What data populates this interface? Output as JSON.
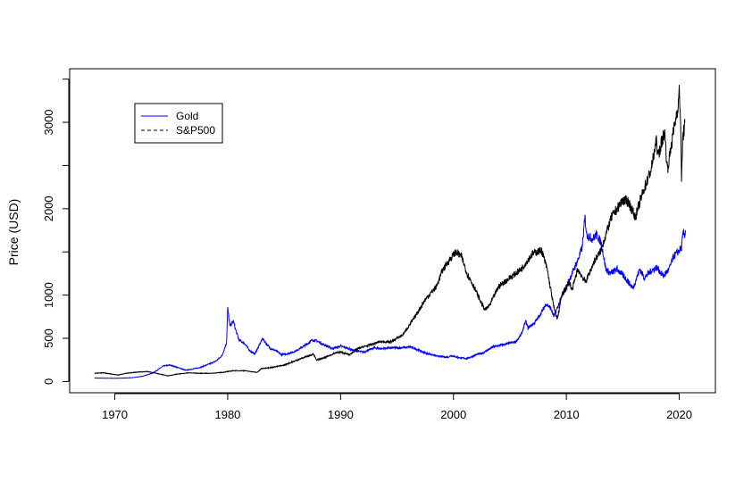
{
  "chart_data": {
    "type": "line",
    "title": "",
    "xlabel": "",
    "ylabel": "Price (USD)",
    "xlim": [
      1966,
      2023.2
    ],
    "ylim": [
      -130,
      3620
    ],
    "x_ticks": [
      1970,
      1980,
      1990,
      2000,
      2010,
      2020
    ],
    "x_tick_labels": [
      "1970",
      "1980",
      "1990",
      "2000",
      "2010",
      "2020"
    ],
    "y_ticks": [
      0,
      500,
      1000,
      2000,
      3000
    ],
    "y_tick_labels": [
      "0",
      "500",
      "1000",
      "2000",
      "3000"
    ],
    "y_minor_ticks": [
      1500,
      2500,
      3500
    ],
    "grid": false,
    "legend_position": "top-left",
    "series": [
      {
        "name": "Gold",
        "color": "#0000ff",
        "dash": "solid",
        "x": [
          1968.2,
          1970.0,
          1971.5,
          1972.5,
          1973.3,
          1973.8,
          1974.3,
          1974.9,
          1975.5,
          1976.3,
          1976.9,
          1977.5,
          1978.0,
          1978.5,
          1979.0,
          1979.5,
          1979.9,
          1980.0,
          1980.2,
          1980.5,
          1980.7,
          1981.0,
          1981.5,
          1982.0,
          1982.4,
          1982.8,
          1983.1,
          1983.4,
          1983.8,
          1984.2,
          1984.8,
          1985.2,
          1985.8,
          1986.5,
          1987.0,
          1987.5,
          1987.9,
          1988.3,
          1988.8,
          1989.3,
          1990.0,
          1990.5,
          1991.2,
          1992.0,
          1993.0,
          1993.6,
          1994.5,
          1995.5,
          1996.2,
          1996.8,
          1997.5,
          1998.5,
          1999.5,
          1999.8,
          2000.5,
          2001.2,
          2002.0,
          2002.6,
          2003.5,
          2004.5,
          2005.5,
          2006.0,
          2006.4,
          2006.6,
          2007.2,
          2007.8,
          2008.2,
          2008.6,
          2008.9,
          2009.5,
          2010.0,
          2010.5,
          2011.0,
          2011.4,
          2011.65,
          2011.8,
          2012.3,
          2012.7,
          2013.1,
          2013.5,
          2013.9,
          2014.5,
          2015.2,
          2015.9,
          2016.5,
          2016.9,
          2017.5,
          2018.0,
          2018.6,
          2019.1,
          2019.5,
          2019.9,
          2020.2,
          2020.35,
          2020.5,
          2020.55
        ],
        "y": [
          40,
          37,
          43,
          62,
          95,
          135,
          180,
          190,
          165,
          130,
          145,
          160,
          185,
          210,
          240,
          300,
          450,
          850,
          640,
          700,
          600,
          480,
          440,
          350,
          320,
          420,
          500,
          440,
          380,
          360,
          310,
          320,
          340,
          390,
          430,
          480,
          470,
          440,
          410,
          380,
          410,
          390,
          360,
          340,
          390,
          380,
          390,
          390,
          400,
          370,
          330,
          295,
          280,
          300,
          275,
          265,
          310,
          330,
          400,
          430,
          460,
          540,
          700,
          620,
          680,
          800,
          900,
          850,
          750,
          950,
          1100,
          1250,
          1400,
          1550,
          1900,
          1700,
          1650,
          1700,
          1600,
          1300,
          1250,
          1300,
          1200,
          1080,
          1300,
          1200,
          1280,
          1320,
          1220,
          1300,
          1450,
          1500,
          1550,
          1720,
          1700,
          1750
        ]
      },
      {
        "name": "S&P500",
        "color": "#000000",
        "dash": "solid",
        "x": [
          1968.2,
          1969.0,
          1970.3,
          1971.0,
          1972.0,
          1972.9,
          1973.5,
          1974.7,
          1975.5,
          1976.5,
          1977.5,
          1978.5,
          1979.5,
          1980.5,
          1981.5,
          1982.6,
          1983.0,
          1984.0,
          1985.0,
          1986.0,
          1987.6,
          1987.85,
          1988.5,
          1989.5,
          1990.0,
          1990.8,
          1991.5,
          1992.5,
          1993.5,
          1994.5,
          1995.5,
          1996.5,
          1997.5,
          1998.5,
          1999.0,
          1999.6,
          2000.2,
          2000.7,
          2001.2,
          2001.8,
          2002.5,
          2002.8,
          2003.2,
          2004.0,
          2005.0,
          2006.0,
          2007.0,
          2007.8,
          2008.3,
          2008.9,
          2009.2,
          2009.6,
          2010.3,
          2010.5,
          2011.0,
          2011.7,
          2012.5,
          2013.0,
          2014.0,
          2015.0,
          2015.5,
          2016.1,
          2016.8,
          2017.5,
          2018.0,
          2018.1,
          2018.7,
          2018.95,
          2019.5,
          2019.9,
          2020.0,
          2020.12,
          2020.2,
          2020.3,
          2020.5
        ],
        "y": [
          95,
          100,
          75,
          95,
          110,
          115,
          100,
          65,
          85,
          100,
          95,
          95,
          105,
          125,
          125,
          105,
          150,
          165,
          190,
          240,
          320,
          250,
          270,
          330,
          340,
          310,
          380,
          420,
          460,
          460,
          540,
          730,
          950,
          1100,
          1280,
          1400,
          1500,
          1450,
          1250,
          1100,
          900,
          830,
          880,
          1100,
          1200,
          1300,
          1480,
          1520,
          1300,
          850,
          720,
          1000,
          1150,
          1050,
          1300,
          1150,
          1400,
          1500,
          1900,
          2100,
          2080,
          1900,
          2200,
          2450,
          2800,
          2600,
          2900,
          2450,
          2900,
          3200,
          3350,
          3050,
          2300,
          2800,
          3000
        ]
      }
    ]
  }
}
